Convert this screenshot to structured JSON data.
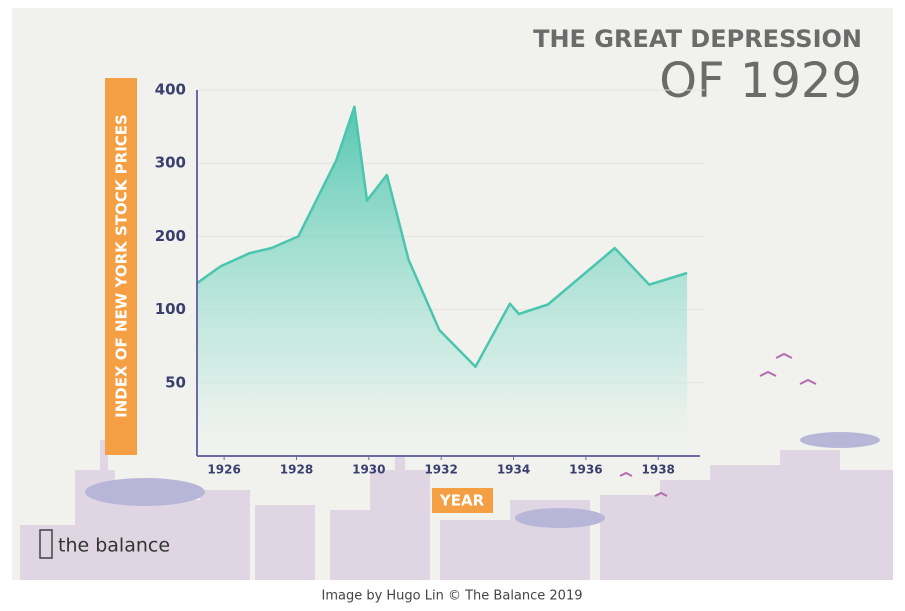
{
  "chart_data": {
    "type": "area",
    "title": "THE GREAT DEPRESSION",
    "subtitle": "OF 1929",
    "y_label": "INDEX OF NEW YORK STOCK PRICES",
    "x_label": "YEAR",
    "x": [
      1925.25,
      1925.9,
      1926.7,
      1927.3,
      1928.05,
      1929.1,
      1929.6,
      1929.95,
      1930.5,
      1931.1,
      1931.95,
      1932.95,
      1933.9,
      1934.15,
      1934.95,
      1936.8,
      1937.75,
      1938.8
    ],
    "values": [
      136,
      159,
      177,
      184,
      200,
      304,
      377,
      249,
      284,
      168,
      86,
      61,
      108,
      97,
      107,
      184,
      134,
      150
    ],
    "color": "#4cc5ae",
    "xlim": [
      1925.25,
      1939.1
    ],
    "xticks": [
      1926,
      1928,
      1930,
      1932,
      1934,
      1936,
      1938
    ],
    "ylim": [
      0,
      400
    ],
    "yticks": [
      50,
      100,
      200,
      300,
      400
    ],
    "grid": true
  },
  "logo": "the balance",
  "caption": "Image by Hugo Lin © The Balance 2019"
}
